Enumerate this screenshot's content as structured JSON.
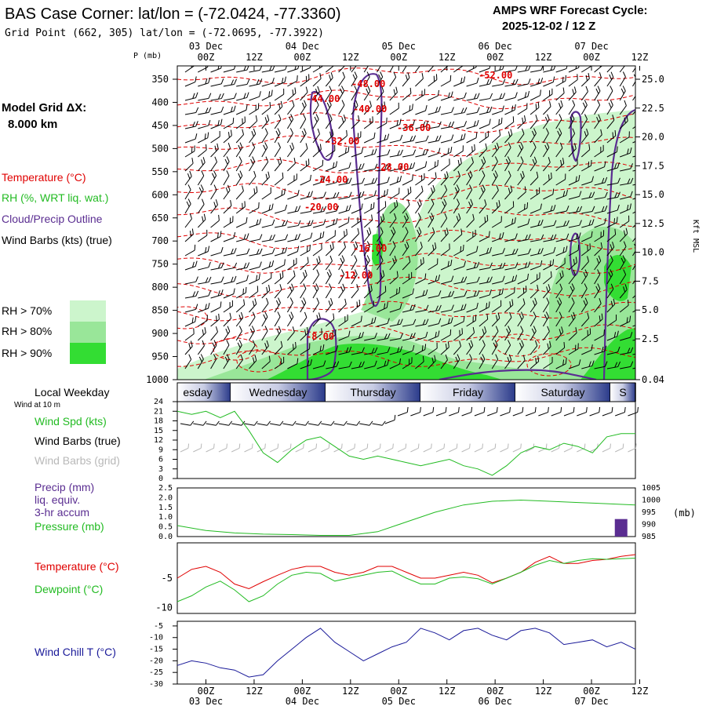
{
  "header": {
    "title": "BAS Case Corner:  lat/lon = (-72.0424, -77.3360)",
    "gridpoint": "Grid Point (662, 305) lat/lon = (-72.0695, -77.3922)",
    "forecast_label": "AMPS WRF Forecast Cycle:",
    "forecast_cycle": "2025-12-02 / 12  Z"
  },
  "sidebar": {
    "model_grid_label": "Model Grid ΔX:",
    "model_grid_value": "8.000 km",
    "legend_temperature": "Temperature (°C)",
    "legend_rh": "RH (%, WRT liq. wat.)",
    "legend_cloud": "Cloud/Precip Outline",
    "legend_wind": "Wind Barbs (kts) (true)",
    "rh70": "RH > 70%",
    "rh80": "RH > 80%",
    "rh90": "RH > 90%",
    "local_weekday": "Local Weekday",
    "wind_10m": "Wind at 10 m",
    "wind_spd": "Wind Spd (kts)",
    "wind_barbs_true": "Wind Barbs (true)",
    "wind_barbs_grid": "Wind Barbs (grid)",
    "precip_1": "Precip (mm)",
    "precip_2": "liq. equiv.",
    "precip_3": "3-hr accum",
    "pressure": "Pressure (mb)",
    "temperature": "Temperature (°C)",
    "dewpoint": "Dewpoint (°C)",
    "windchill": "Wind Chill T (°C)"
  },
  "colors": {
    "rh70": "#ccf5cc",
    "rh80": "#99e699",
    "rh90": "#33dd33",
    "temp": "#e00000",
    "cloud": "#5a2d91",
    "green": "#22bb22",
    "navy": "#1a1a99"
  },
  "chart_data": [
    {
      "type": "heatmap",
      "panel": "cross-section",
      "ylabel": "P (mb)",
      "y2label": "Kft MSL",
      "x_ticks": [
        "00Z",
        "12Z",
        "00Z",
        "12Z",
        "00Z",
        "12Z",
        "00Z",
        "12Z",
        "00Z",
        "12Z"
      ],
      "x_dates": [
        "03 Dec",
        "04 Dec",
        "05 Dec",
        "06 Dec",
        "07 Dec"
      ],
      "p_ticks": [
        "350",
        "400",
        "450",
        "500",
        "550",
        "600",
        "650",
        "700",
        "750",
        "800",
        "850",
        "900",
        "950",
        "1000"
      ],
      "kft_ticks": [
        "25.0",
        "22.5",
        "20.0",
        "17.5",
        "15.0",
        "12.5",
        "10.0",
        "7.5",
        "5.0",
        "2.5",
        "0.04"
      ],
      "temp_labels": [
        "-48.00",
        "-52.00",
        "-44.00",
        "-40.00",
        "-36.00",
        "-32.00",
        "-28.00",
        "-24.00",
        "-20.00",
        "-16.00",
        "-12.00",
        "-8.00"
      ]
    },
    {
      "type": "table",
      "panel": "weekday-bar",
      "days": [
        "esday",
        "Wednesday",
        "Thursday",
        "Friday",
        "Saturday",
        "S"
      ]
    },
    {
      "type": "line",
      "panel": "wind",
      "yticks": [
        "24",
        "21",
        "18",
        "15",
        "12",
        "9",
        "6",
        "3",
        "0"
      ],
      "ylim": [
        0,
        24
      ],
      "x": [
        0,
        3,
        6,
        9,
        12,
        15,
        18,
        21,
        24,
        27,
        30,
        33,
        36,
        39,
        42,
        45,
        48,
        51,
        54,
        57,
        60,
        63,
        66,
        69,
        72,
        75,
        78,
        81,
        84,
        87,
        90,
        93,
        96
      ],
      "series": [
        {
          "values": [
            21,
            20,
            21,
            19,
            21,
            15,
            8,
            5,
            9,
            12,
            13,
            10,
            7,
            6,
            7,
            6,
            5,
            4,
            5,
            6,
            4,
            3,
            1,
            4,
            8,
            10,
            9,
            11,
            10,
            8,
            13,
            14,
            14
          ]
        }
      ]
    },
    {
      "type": "line",
      "panel": "precip-pressure",
      "yticks": [
        "2.5",
        "2.0",
        "1.5",
        "1.0",
        "0.5",
        "0.0"
      ],
      "ylim": [
        0,
        2.5
      ],
      "y2ticks": [
        "1005",
        "1000",
        "995",
        "990",
        "985"
      ],
      "y2lim": [
        985,
        1005
      ],
      "y2label": "(mb)",
      "x": [
        0,
        6,
        12,
        18,
        24,
        30,
        36,
        42,
        48,
        54,
        60,
        66,
        72,
        78,
        84,
        90,
        96
      ],
      "pressure": [
        989.5,
        987.5,
        986.5,
        986,
        985.8,
        985.5,
        985.5,
        987,
        991,
        995,
        998,
        999.5,
        1000,
        999.5,
        999,
        998.5,
        998
      ],
      "precip_bars": [
        {
          "x": 93,
          "value": 0.9
        }
      ]
    },
    {
      "type": "line",
      "panel": "temperature",
      "yticks": [
        "-5",
        "-10"
      ],
      "ylim": [
        -11,
        1
      ],
      "x": [
        0,
        3,
        6,
        9,
        12,
        15,
        18,
        21,
        24,
        27,
        30,
        33,
        36,
        39,
        42,
        45,
        48,
        51,
        54,
        57,
        60,
        63,
        66,
        69,
        72,
        75,
        78,
        81,
        84,
        87,
        90,
        93,
        96
      ],
      "series": [
        {
          "values": [
            -5,
            -3.5,
            -3,
            -4,
            -6,
            -6.8,
            -5.6,
            -4.5,
            -3.5,
            -3,
            -3,
            -4,
            -4.5,
            -4,
            -3,
            -3,
            -4,
            -5,
            -5,
            -4.5,
            -4,
            -4.5,
            -5.8,
            -5,
            -4,
            -2.3,
            -1.3,
            -2.5,
            -2.5,
            -2,
            -1.8,
            -1.3,
            -1
          ]
        },
        {
          "values": [
            -9,
            -8,
            -6.5,
            -5.5,
            -7,
            -9,
            -8,
            -6,
            -4.5,
            -4,
            -4.2,
            -5.5,
            -5,
            -4.5,
            -4,
            -3.8,
            -5,
            -6,
            -6,
            -5,
            -4.8,
            -5.1,
            -6,
            -5,
            -4,
            -2.8,
            -2,
            -2.5,
            -2,
            -1.7,
            -1.8,
            -1.7,
            -1.6
          ]
        }
      ]
    },
    {
      "type": "line",
      "panel": "windchill",
      "yticks": [
        "-5",
        "-10",
        "-15",
        "-20",
        "-25",
        "-30"
      ],
      "ylim": [
        -30,
        -3
      ],
      "x": [
        0,
        3,
        6,
        9,
        12,
        15,
        18,
        21,
        24,
        27,
        30,
        33,
        36,
        39,
        42,
        45,
        48,
        51,
        54,
        57,
        60,
        63,
        66,
        69,
        72,
        75,
        78,
        81,
        84,
        87,
        90,
        93,
        96
      ],
      "series": [
        {
          "values": [
            -22,
            -20,
            -21,
            -23,
            -24,
            -27,
            -26,
            -20,
            -15,
            -10,
            -6,
            -12,
            -16,
            -20,
            -17,
            -14,
            -12,
            -6,
            -8,
            -11,
            -7,
            -6,
            -9,
            -11,
            -7,
            -6,
            -8,
            -13,
            -12,
            -11,
            -14,
            -12,
            -15
          ]
        }
      ]
    }
  ]
}
